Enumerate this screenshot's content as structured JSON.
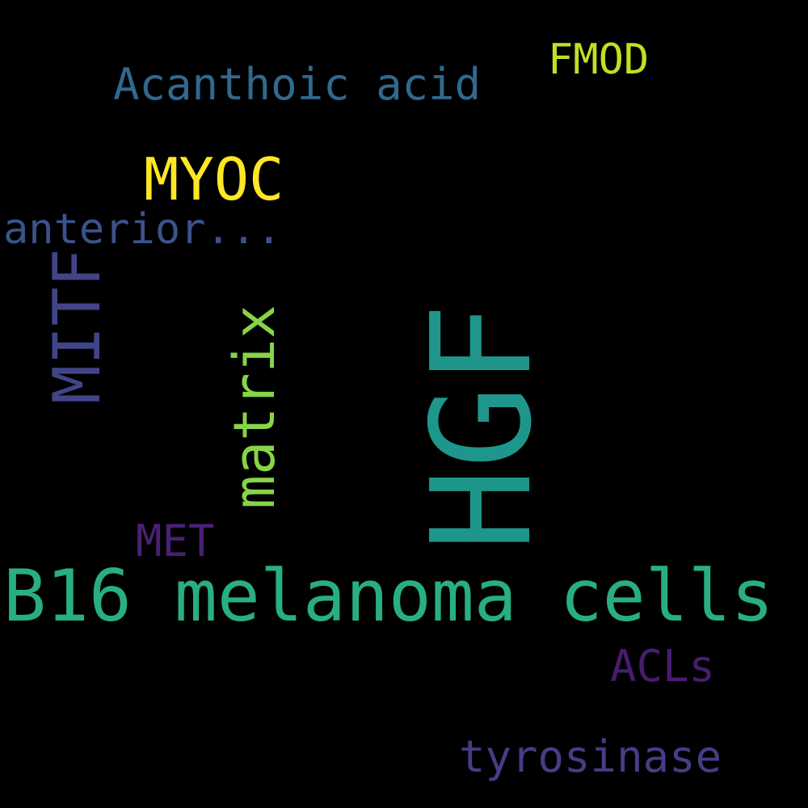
{
  "words": [
    {
      "id": "hgf",
      "text": "HGF",
      "color": "#1f968b"
    },
    {
      "id": "b16",
      "text": "B16 melanoma cells",
      "color": "#29af7f"
    },
    {
      "id": "myoc",
      "text": "MYOC",
      "color": "#fde725"
    },
    {
      "id": "matrix",
      "text": "matrix",
      "color": "#86d549"
    },
    {
      "id": "mitf",
      "text": "MITF",
      "color": "#414487"
    },
    {
      "id": "acanthoic",
      "text": "Acanthoic acid",
      "color": "#31688e"
    },
    {
      "id": "fmod",
      "text": "FMOD",
      "color": "#c2df23"
    },
    {
      "id": "anterior",
      "text": "anterior...",
      "color": "#3b528b"
    },
    {
      "id": "met",
      "text": "MET",
      "color": "#482173"
    },
    {
      "id": "acls",
      "text": "ACLs",
      "color": "#481c6e"
    },
    {
      "id": "tyrosinase",
      "text": "tyrosinase",
      "color": "#433e85"
    }
  ],
  "background_color": "#000000"
}
